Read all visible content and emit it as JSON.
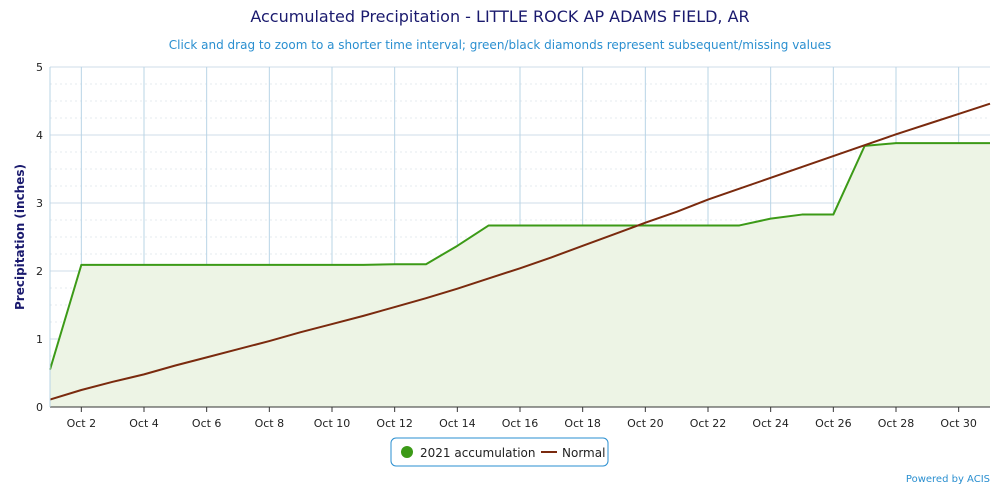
{
  "chart_data": {
    "type": "area",
    "title": "Accumulated Precipitation - LITTLE ROCK AP ADAMS FIELD, AR",
    "subtitle": "Click and drag to zoom to a shorter time interval; green/black diamonds represent subsequent/missing values",
    "ylabel": "Precipitation (inches)",
    "xlabel": "",
    "ylim": [
      0,
      5
    ],
    "xlim": [
      1,
      31
    ],
    "y_ticks": [
      "0",
      "1",
      "2",
      "3",
      "4",
      "5"
    ],
    "x_ticks": [
      {
        "day": 2,
        "label": "Oct 2"
      },
      {
        "day": 4,
        "label": "Oct 4"
      },
      {
        "day": 6,
        "label": "Oct 6"
      },
      {
        "day": 8,
        "label": "Oct 8"
      },
      {
        "day": 10,
        "label": "Oct 10"
      },
      {
        "day": 12,
        "label": "Oct 12"
      },
      {
        "day": 14,
        "label": "Oct 14"
      },
      {
        "day": 16,
        "label": "Oct 16"
      },
      {
        "day": 18,
        "label": "Oct 18"
      },
      {
        "day": 20,
        "label": "Oct 20"
      },
      {
        "day": 22,
        "label": "Oct 22"
      },
      {
        "day": 24,
        "label": "Oct 24"
      },
      {
        "day": 26,
        "label": "Oct 26"
      },
      {
        "day": 28,
        "label": "Oct 28"
      },
      {
        "day": 30,
        "label": "Oct 30"
      }
    ],
    "grid": true,
    "legend_position": "bottom-center",
    "credit": "Powered by ACIS",
    "series": [
      {
        "name": "2021 accumulation",
        "color": "#3c9a17",
        "fill": "#edf4e5",
        "x": [
          1,
          2,
          3,
          4,
          5,
          6,
          7,
          8,
          9,
          10,
          11,
          12,
          13,
          14,
          15,
          16,
          17,
          18,
          19,
          20,
          21,
          22,
          23,
          24,
          25,
          26,
          27,
          28,
          29,
          30,
          31
        ],
        "values": [
          0.55,
          2.09,
          2.09,
          2.09,
          2.09,
          2.09,
          2.09,
          2.09,
          2.09,
          2.09,
          2.09,
          2.1,
          2.1,
          2.37,
          2.67,
          2.67,
          2.67,
          2.67,
          2.67,
          2.67,
          2.67,
          2.67,
          2.67,
          2.77,
          2.83,
          2.83,
          3.84,
          3.88,
          3.88,
          3.88,
          3.88
        ]
      },
      {
        "name": "Normal",
        "color": "#7a2a0e",
        "x": [
          1,
          2,
          3,
          4,
          5,
          6,
          7,
          8,
          9,
          10,
          11,
          12,
          13,
          14,
          15,
          16,
          17,
          18,
          19,
          20,
          21,
          22,
          23,
          24,
          25,
          26,
          27,
          28,
          29,
          30,
          31
        ],
        "values": [
          0.11,
          0.25,
          0.37,
          0.48,
          0.61,
          0.73,
          0.85,
          0.97,
          1.1,
          1.22,
          1.34,
          1.47,
          1.6,
          1.74,
          1.89,
          2.04,
          2.2,
          2.37,
          2.54,
          2.71,
          2.87,
          3.05,
          3.21,
          3.37,
          3.53,
          3.69,
          3.85,
          4.01,
          4.16,
          4.31,
          4.46
        ]
      }
    ]
  }
}
